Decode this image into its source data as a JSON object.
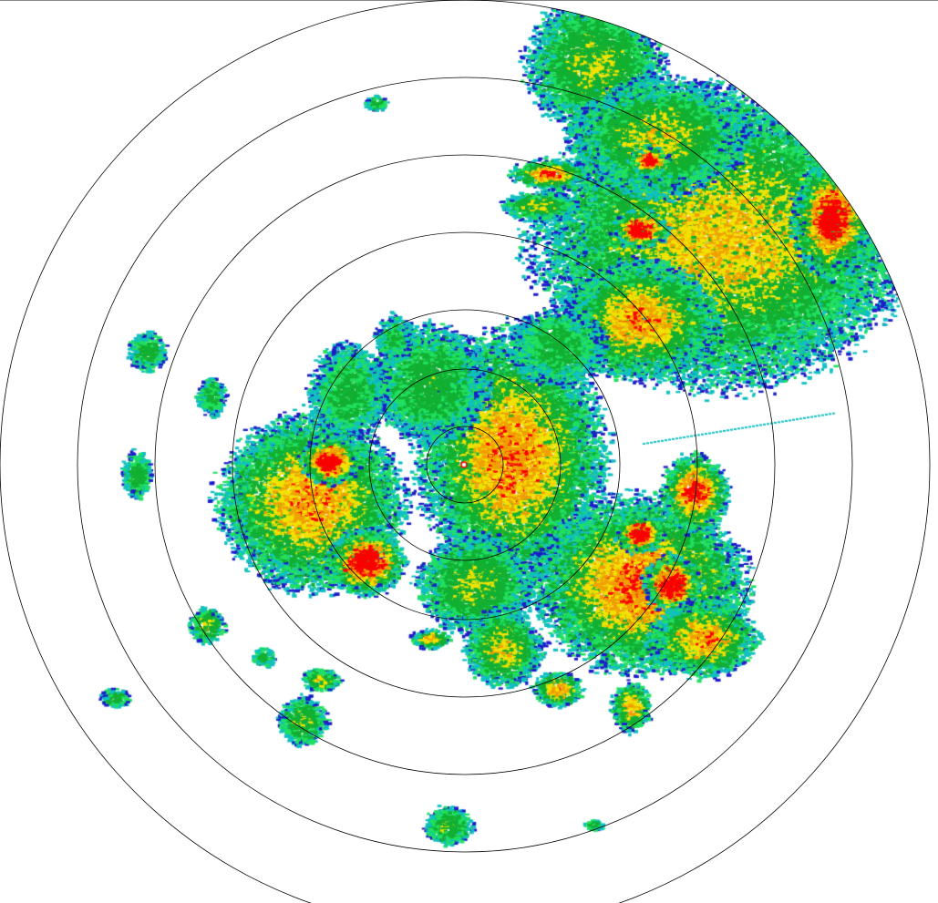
{
  "radar": {
    "product": "reflectivity-ppi",
    "range_rings_count": 7,
    "palette": {
      "weak_blue": "#1c1cc8",
      "cyan": "#10c0c0",
      "light_green": "#20e060",
      "green": "#12b032",
      "yellow": "#f2e200",
      "orange": "#f0a000",
      "red": "#fa0000",
      "ring_color": "#000000",
      "background": "#ffffff"
    }
  }
}
